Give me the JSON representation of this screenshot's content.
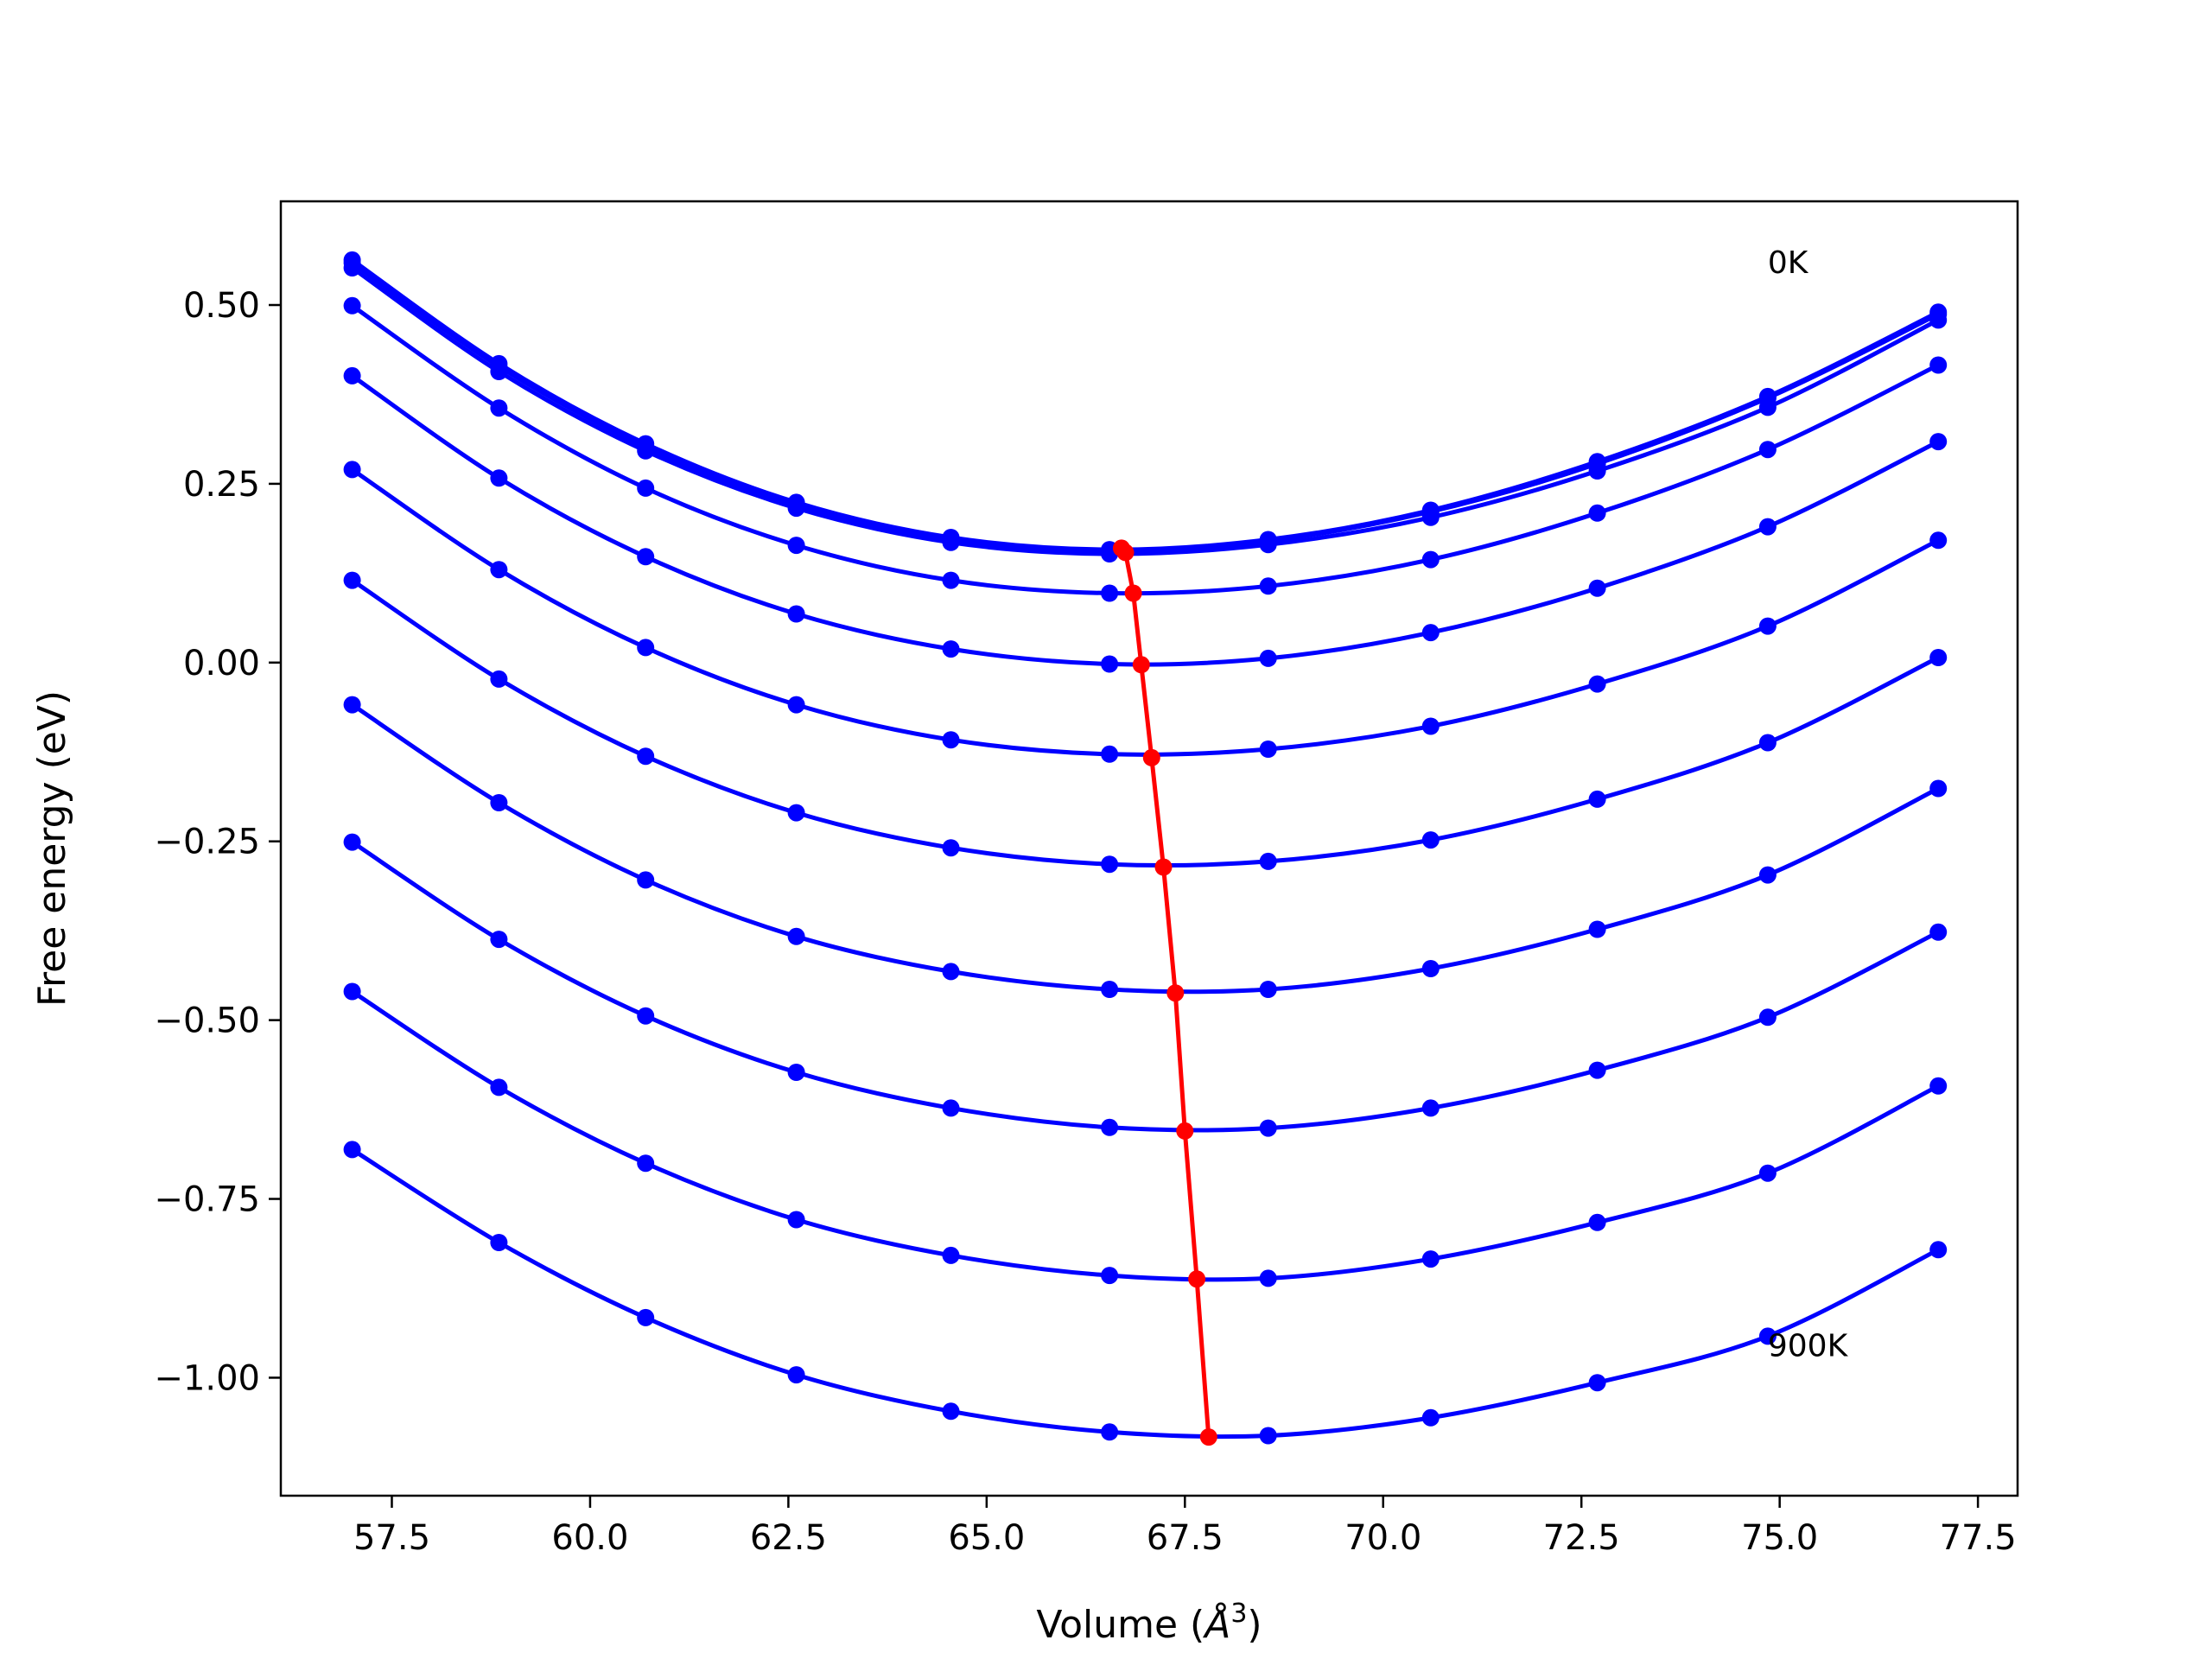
{
  "chart_data": {
    "type": "line",
    "title": "",
    "xlabel": "Volume (",
    "xlabel_symbol": "Å",
    "xlabel_exp": "3",
    "xlabel_close": ")",
    "ylabel": "Free energy (eV)",
    "xlim": [
      56.1,
      78.0
    ],
    "ylim": [
      -1.165,
      0.645
    ],
    "xticks": [
      57.5,
      60.0,
      62.5,
      65.0,
      67.5,
      70.0,
      72.5,
      75.0,
      77.5
    ],
    "xtick_labels": [
      "57.5",
      "60.0",
      "62.5",
      "65.0",
      "67.5",
      "70.0",
      "72.5",
      "75.0",
      "77.5"
    ],
    "yticks": [
      0.5,
      0.25,
      0.0,
      -0.25,
      -0.5,
      -0.75,
      -1.0
    ],
    "ytick_labels": [
      "0.50",
      "0.25",
      "0.00",
      "−0.25",
      "−0.50",
      "−0.75",
      "−1.00"
    ],
    "grid": false,
    "colors": {
      "curves": "#0000ff",
      "minimum_line": "#ff0000",
      "frame": "#000000"
    },
    "annotations": [
      {
        "text": "0K",
        "x": 74.85,
        "y": 0.545
      },
      {
        "text": "900K",
        "x": 74.85,
        "y": -0.97
      }
    ],
    "x": [
      57.0,
      58.85,
      60.7,
      62.6,
      64.55,
      66.55,
      68.55,
      70.6,
      72.7,
      74.85,
      77.0
    ],
    "series": [
      {
        "values": [
          0.563,
          0.418,
          0.306,
          0.224,
          0.175,
          0.158,
          0.172,
          0.213,
          0.281,
          0.372,
          0.49
        ]
      },
      {
        "values": [
          0.559,
          0.414,
          0.302,
          0.22,
          0.172,
          0.156,
          0.17,
          0.211,
          0.278,
          0.37,
          0.487
        ]
      },
      {
        "values": [
          0.552,
          0.407,
          0.296,
          0.216,
          0.168,
          0.152,
          0.165,
          0.203,
          0.268,
          0.357,
          0.479
        ]
      },
      {
        "values": [
          0.499,
          0.356,
          0.244,
          0.164,
          0.115,
          0.097,
          0.107,
          0.144,
          0.209,
          0.298,
          0.416
        ]
      },
      {
        "values": [
          0.401,
          0.258,
          0.148,
          0.068,
          0.019,
          -0.002,
          0.006,
          0.042,
          0.104,
          0.19,
          0.309
        ]
      },
      {
        "values": [
          0.27,
          0.13,
          0.021,
          -0.059,
          -0.108,
          -0.128,
          -0.121,
          -0.089,
          -0.03,
          0.051,
          0.171
        ]
      },
      {
        "values": [
          0.115,
          -0.023,
          -0.131,
          -0.21,
          -0.259,
          -0.282,
          -0.278,
          -0.248,
          -0.191,
          -0.112,
          0.007
        ]
      },
      {
        "values": [
          -0.059,
          -0.196,
          -0.304,
          -0.383,
          -0.432,
          -0.457,
          -0.457,
          -0.428,
          -0.373,
          -0.297,
          -0.176
        ]
      },
      {
        "values": [
          -0.251,
          -0.387,
          -0.494,
          -0.573,
          -0.623,
          -0.65,
          -0.651,
          -0.623,
          -0.57,
          -0.496,
          -0.377
        ]
      },
      {
        "values": [
          -0.46,
          -0.594,
          -0.7,
          -0.779,
          -0.829,
          -0.857,
          -0.861,
          -0.834,
          -0.783,
          -0.714,
          -0.592
        ]
      },
      {
        "values": [
          -0.681,
          -0.811,
          -0.916,
          -0.996,
          -1.047,
          -1.076,
          -1.081,
          -1.056,
          -1.007,
          -0.942,
          -0.821
        ]
      }
    ],
    "minimum_line": {
      "x": [
        66.7,
        66.75,
        66.85,
        66.95,
        67.08,
        67.23,
        67.38,
        67.5,
        67.65,
        67.8
      ],
      "y": [
        0.16,
        0.154,
        0.097,
        -0.003,
        -0.133,
        -0.286,
        -0.462,
        -0.655,
        -0.862,
        -1.083
      ]
    }
  }
}
